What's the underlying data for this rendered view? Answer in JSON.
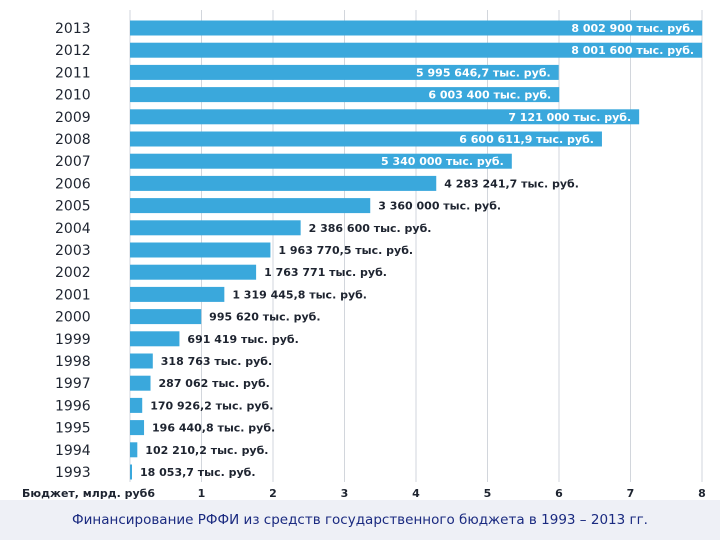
{
  "chart_data": {
    "type": "bar",
    "orientation": "horizontal",
    "categories": [
      "2013",
      "2012",
      "2011",
      "2010",
      "2009",
      "2008",
      "2007",
      "2006",
      "2005",
      "2004",
      "2003",
      "2002",
      "2001",
      "2000",
      "1999",
      "1998",
      "1997",
      "1996",
      "1995",
      "1994",
      "1993"
    ],
    "values": [
      8.0029,
      8.0016,
      5.9956467,
      6.0034,
      7.121,
      6.6006119,
      5.34,
      4.2832417,
      3.36,
      2.3866,
      1.9637705,
      1.763771,
      1.3194458,
      0.99562,
      0.691419,
      0.318763,
      0.287062,
      0.1709262,
      0.1964408,
      0.1022102,
      0.0180537
    ],
    "data_labels": [
      "8 002 900 тыс. руб.",
      "8 001 600 тыс. руб.",
      "5 995 646,7 тыс. руб.",
      "6 003 400 тыс. руб.",
      "7 121 000 тыс. руб.",
      "6 600 611,9 тыс. руб.",
      "5 340 000 тыс. руб.",
      "4 283 241,7 тыс. руб.",
      "3 360 000 тыс. руб.",
      "2 386 600 тыс. руб.",
      "1 963 770,5 тыс. руб.",
      "1 763 771 тыс. руб.",
      "1 319 445,8 тыс. руб.",
      "995 620 тыс. руб.",
      "691 419 тыс. руб.",
      "318 763 тыс. руб.",
      "287 062 тыс. руб.",
      "170 926,2 тыс. руб.",
      "196 440,8 тыс. руб.",
      "102 210,2 тыс. руб.",
      "18 053,7 тыс. руб."
    ],
    "x_ticks": [
      "Бюджет, млрд. руб6",
      "1",
      "2",
      "3",
      "4",
      "5",
      "6",
      "7",
      "8"
    ],
    "xlim": [
      0,
      8
    ],
    "grid": true,
    "bar_color": "#3aa8dc"
  },
  "caption": "Финансирование РФФИ из средств государственного бюджета в 1993 – 2013 гг."
}
